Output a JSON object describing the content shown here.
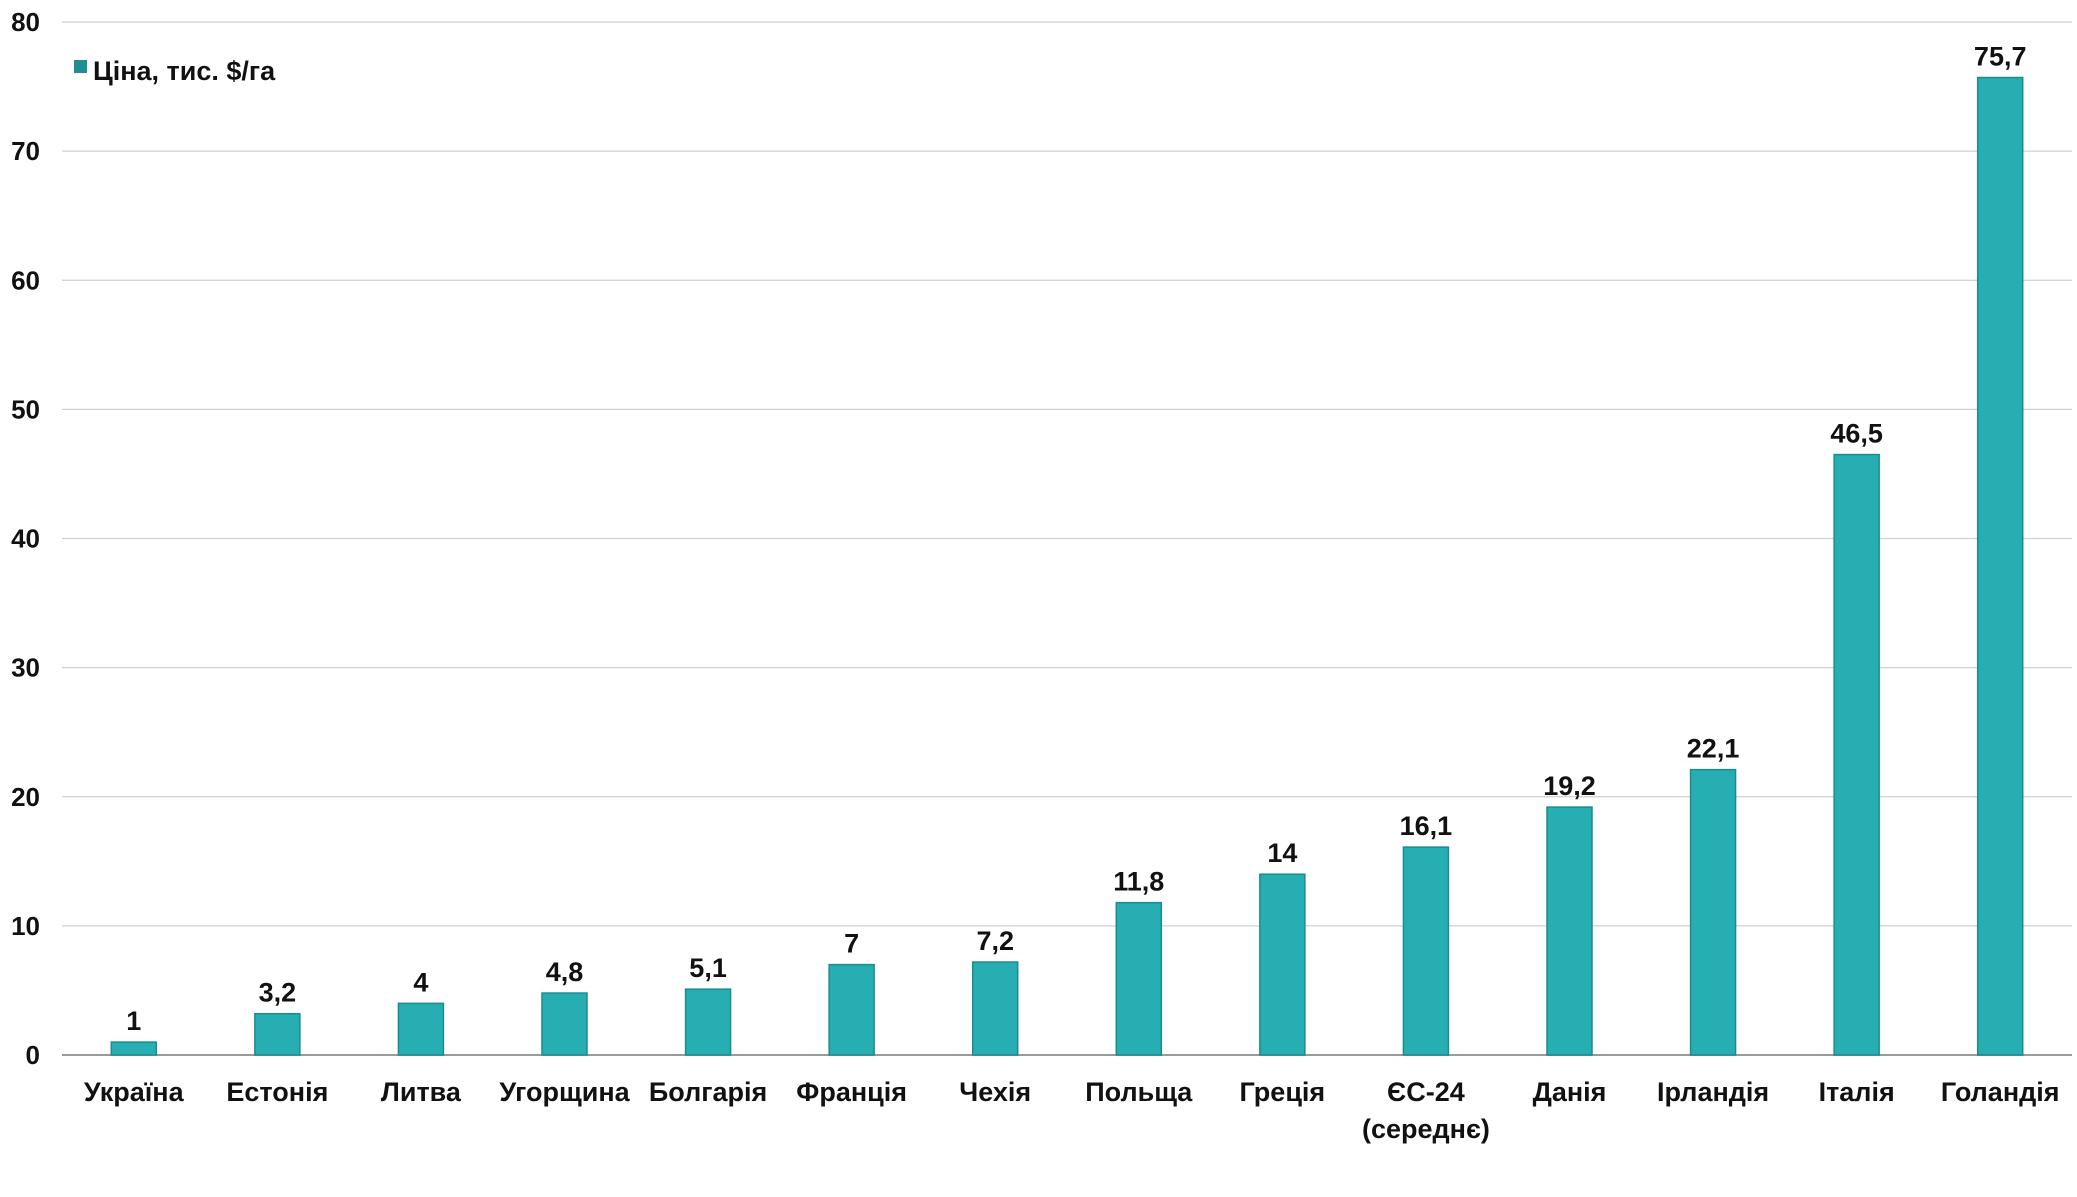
{
  "chart_data": {
    "type": "bar",
    "categories": [
      [
        "Україна"
      ],
      [
        "Естонія"
      ],
      [
        "Литва"
      ],
      [
        "Угорщина"
      ],
      [
        "Болгарія"
      ],
      [
        "Франція"
      ],
      [
        "Чехія"
      ],
      [
        "Польща"
      ],
      [
        "Греція"
      ],
      [
        "ЄС-24",
        "(середнє)"
      ],
      [
        "Данія"
      ],
      [
        "Ірландія"
      ],
      [
        "Італія"
      ],
      [
        "Голандія"
      ]
    ],
    "series": [
      {
        "name": "Ціна, тис. $/га",
        "values": [
          1,
          3.2,
          4,
          4.8,
          5.1,
          7,
          7.2,
          11.8,
          14,
          16.1,
          19.2,
          22.1,
          46.5,
          75.7
        ],
        "value_labels": [
          "1",
          "3,2",
          "4",
          "4,8",
          "5,1",
          "7",
          "7,2",
          "11,8",
          "14",
          "16,1",
          "19,2",
          "22,1",
          "46,5",
          "75,7"
        ]
      }
    ],
    "ylim": [
      0,
      80
    ],
    "yticks": [
      0,
      10,
      20,
      30,
      40,
      50,
      60,
      70,
      80
    ],
    "grid": true,
    "legend_position": "top-left",
    "colors": {
      "bar": "#26aeb2",
      "bar_edge": "#1a8c90",
      "grid": "#cfcfcf",
      "axis": "#9a9a9a",
      "legend_marker": "#1d8f94"
    }
  }
}
